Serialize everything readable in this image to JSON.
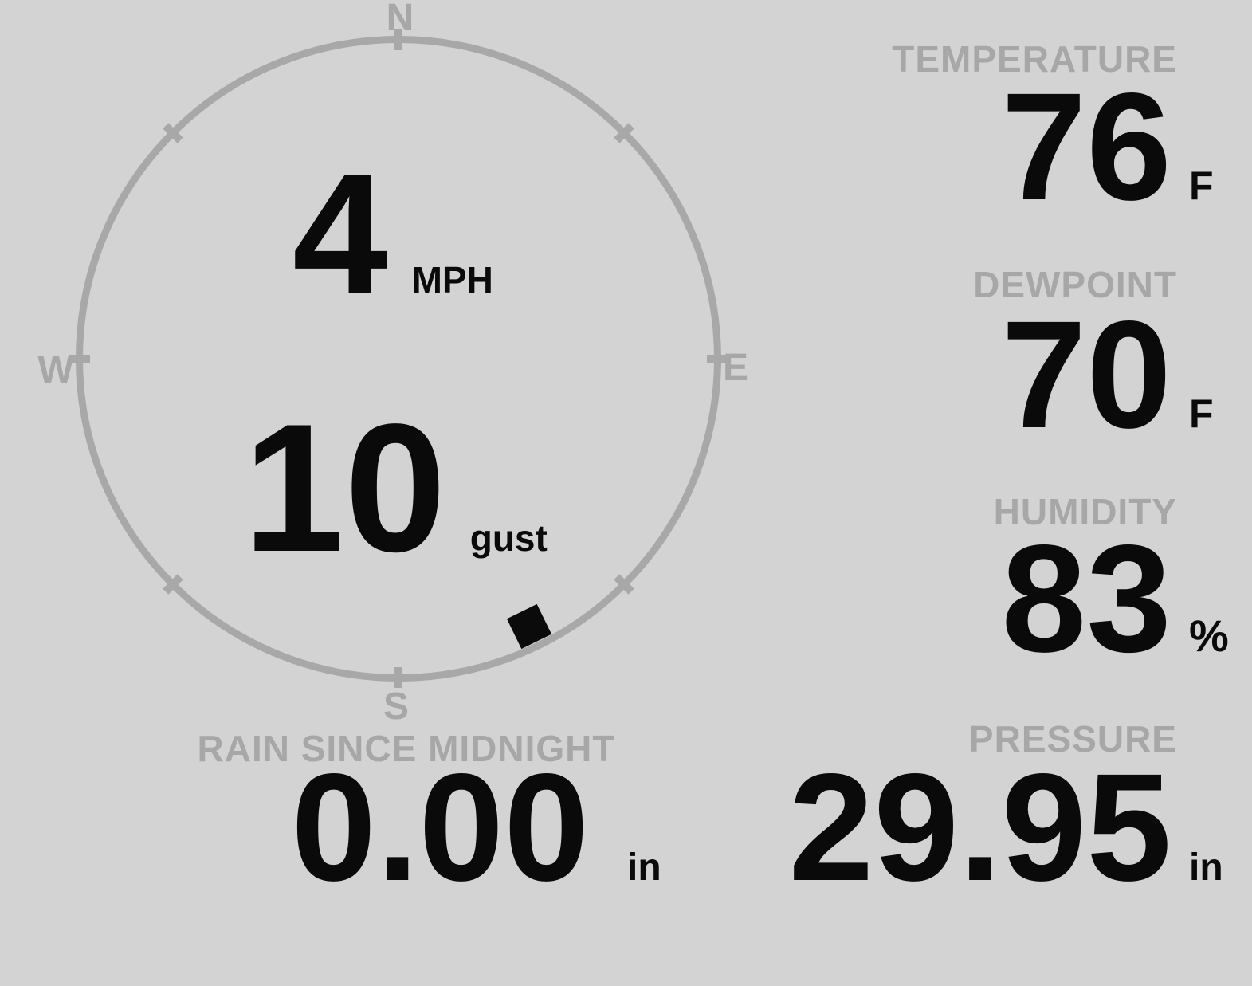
{
  "colors": {
    "background": "#d3d3d3",
    "muted_gray": "#a7a7a7",
    "ring_gray": "#a8a8a8",
    "value_black": "#0a0a0a",
    "marker_black": "#0b0b0b"
  },
  "wind": {
    "speed": "4",
    "speed_unit": "MPH",
    "gust": "10",
    "gust_label": "gust",
    "direction_deg": 154,
    "compass": {
      "n": "N",
      "e": "E",
      "s": "S",
      "w": "W"
    }
  },
  "metrics": [
    {
      "id": "temperature",
      "label": "TEMPERATURE",
      "value": "76",
      "unit": "F"
    },
    {
      "id": "dewpoint",
      "label": "DEWPOINT",
      "value": "70",
      "unit": "F"
    },
    {
      "id": "humidity",
      "label": "HUMIDITY",
      "value": "83",
      "unit": "%"
    }
  ],
  "bottom_metrics": [
    {
      "id": "rain",
      "label": "RAIN SINCE MIDNIGHT",
      "value": "0.00",
      "unit": "in"
    },
    {
      "id": "pressure",
      "label": "PRESSURE",
      "value": "29.95",
      "unit": "in"
    }
  ]
}
